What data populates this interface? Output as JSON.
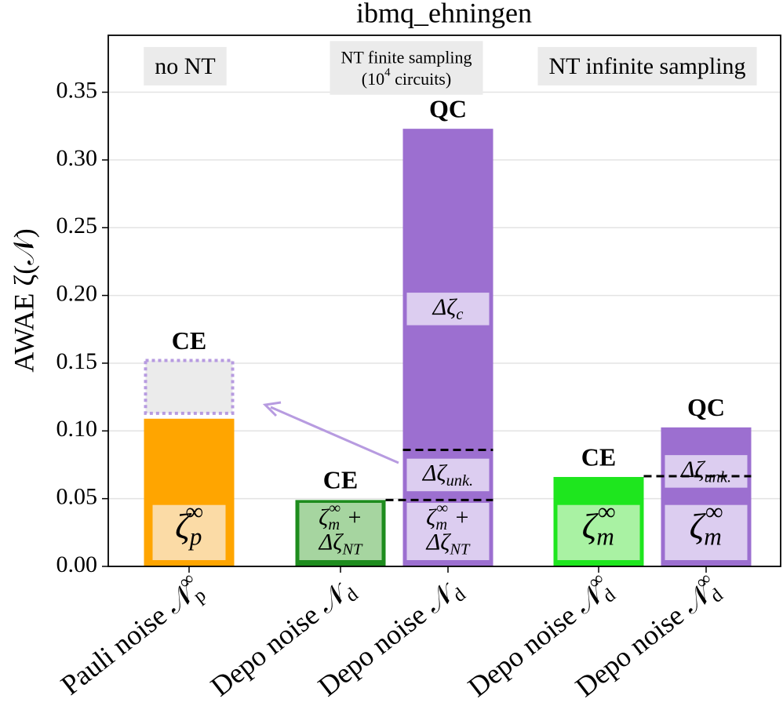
{
  "chart_data": {
    "type": "stacked_bar",
    "title": "ibmq_ehningen",
    "y_label": "AWAE ζ(𝒩)",
    "ylim": [
      0,
      0.392
    ],
    "yticks": [
      {
        "value": 0,
        "label": "0.00"
      },
      {
        "value": 0.05,
        "label": "0.05"
      },
      {
        "value": 0.1,
        "label": "0.10"
      },
      {
        "value": 0.15,
        "label": "0.15"
      },
      {
        "value": 0.2,
        "label": "0.20"
      },
      {
        "value": 0.25,
        "label": "0.25"
      },
      {
        "value": 0.3,
        "label": "0.30"
      },
      {
        "value": 0.35,
        "label": "0.35"
      }
    ],
    "grid": true,
    "panels": [
      {
        "lines": [
          [
            [
              "no NT",
              ""
            ]
          ]
        ]
      },
      {
        "lines": [
          [
            [
              "NT finite sampling",
              ""
            ]
          ],
          [
            [
              "(10",
              ""
            ],
            [
              "4",
              "sup"
            ],
            [
              " circuits)",
              ""
            ]
          ]
        ]
      },
      {
        "lines": [
          [
            [
              "NT infinite sampling",
              ""
            ]
          ]
        ]
      }
    ],
    "bars": [
      {
        "category": [
          [
            "Pauli noise 𝒩",
            ""
          ],
          [
            "p",
            "sub"
          ],
          [
            "∞",
            "sup"
          ]
        ],
        "header": "CE",
        "color": "#ffa500",
        "label_color": "#fbdba6",
        "dotted_range": [
          0.113,
          0.152
        ],
        "segments": [
          {
            "value": 0.109,
            "label": [
              [
                [
                  "ζ",
                  ""
                ],
                [
                  "p",
                  "sub"
                ],
                [
                  "∞",
                  "sup"
                ]
              ]
            ]
          }
        ]
      },
      {
        "category": [
          [
            "Depo noise 𝒩",
            ""
          ],
          [
            "d",
            "sub"
          ]
        ],
        "header": "CE",
        "color": "#1e8c1e",
        "label_color": "#a6d5a0",
        "segments": [
          {
            "value": 0.049,
            "label": [
              [
                [
                  "ζ",
                  ""
                ],
                [
                  "m",
                  "sub"
                ],
                [
                  "∞",
                  "sup"
                ],
                [
                  " +",
                  ""
                ]
              ],
              [
                [
                  "Δζ",
                  ""
                ],
                [
                  "NT",
                  "sub"
                ]
              ]
            ]
          }
        ]
      },
      {
        "category": [
          [
            "Depo noise 𝒩",
            ""
          ],
          [
            "d",
            "sub"
          ]
        ],
        "header": "QC",
        "color": "#9c6fd0",
        "label_color": "#dccdf0",
        "segments": [
          {
            "value": 0.049,
            "label": [
              [
                [
                  "ζ",
                  ""
                ],
                [
                  "m",
                  "sub"
                ],
                [
                  "∞",
                  "sup"
                ],
                [
                  " +",
                  ""
                ]
              ],
              [
                [
                  "Δζ",
                  ""
                ],
                [
                  "NT",
                  "sub"
                ]
              ]
            ]
          },
          {
            "value": 0.037,
            "label": [
              [
                [
                  "Δζ",
                  ""
                ],
                [
                  "unk.",
                  "sub"
                ]
              ]
            ]
          },
          {
            "value": 0.237,
            "label": [
              [
                [
                  "Δζ",
                  ""
                ],
                [
                  "c",
                  "sub"
                ]
              ]
            ]
          }
        ]
      },
      {
        "category": [
          [
            "Depo noise 𝒩",
            ""
          ],
          [
            "d",
            "sub"
          ],
          [
            "∞",
            "sup"
          ]
        ],
        "header": "CE",
        "color": "#1ee61e",
        "label_color": "#a9f2a3",
        "segments": [
          {
            "value": 0.066,
            "label": [
              [
                [
                  "ζ",
                  ""
                ],
                [
                  "m",
                  "sub"
                ],
                [
                  "∞",
                  "sup"
                ]
              ]
            ]
          }
        ]
      },
      {
        "category": [
          [
            "Depo noise 𝒩",
            ""
          ],
          [
            "d",
            "sub"
          ],
          [
            "∞",
            "sup"
          ]
        ],
        "header": "QC",
        "color": "#9c6fd0",
        "label_color": "#dccdf0",
        "segments": [
          {
            "value": 0.0666,
            "label": [
              [
                [
                  "ζ",
                  ""
                ],
                [
                  "m",
                  "sub"
                ],
                [
                  "∞",
                  "sup"
                ]
              ]
            ]
          },
          {
            "value": 0.036,
            "label": [
              [
                [
                  "Δζ",
                  ""
                ],
                [
                  "unk.",
                  "sub"
                ]
              ]
            ]
          }
        ]
      }
    ]
  }
}
